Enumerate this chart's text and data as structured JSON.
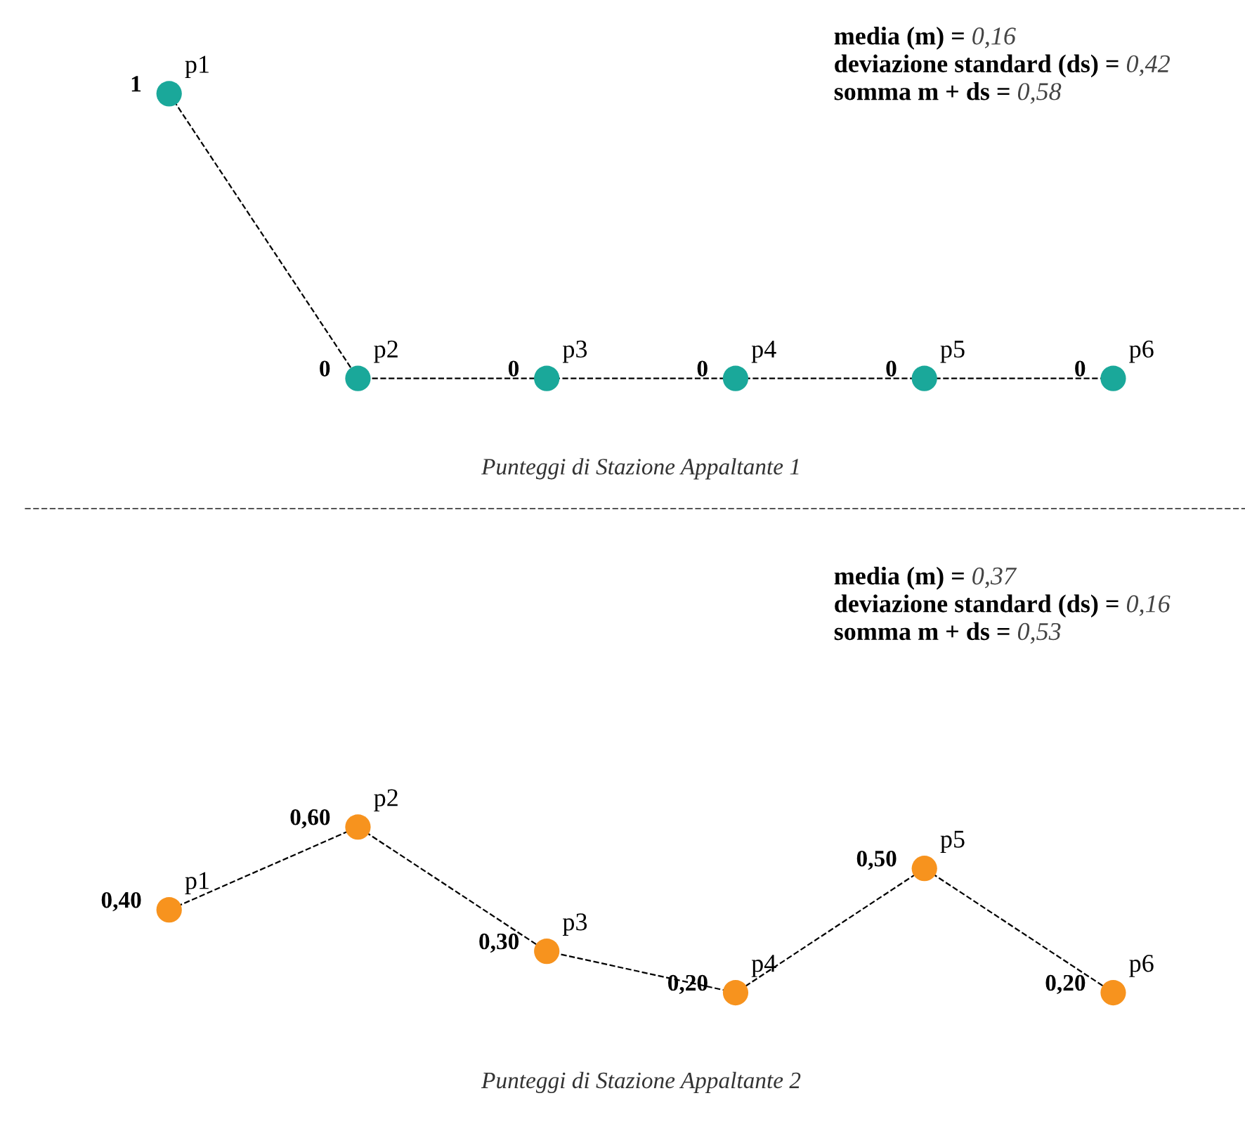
{
  "chart_data": [
    {
      "type": "line",
      "categories": [
        "p1",
        "p2",
        "p3",
        "p4",
        "p5",
        "p6"
      ],
      "series": [
        {
          "color": "#1aa89a",
          "values": [
            1,
            0,
            0,
            0,
            0,
            0
          ],
          "value_labels": [
            "1",
            "0",
            "0",
            "0",
            "0",
            "0"
          ]
        }
      ],
      "marker": "circle",
      "line_style": "dashed",
      "tick_labels": false,
      "annotations": [
        "media (m) = 0,16",
        "deviazione standard (ds) = 0,42",
        "somma m + ds = 0,58",
        "Punteggi di Stazione Appaltante 1"
      ]
    },
    {
      "type": "line",
      "categories": [
        "p1",
        "p2",
        "p3",
        "p4",
        "p5",
        "p6"
      ],
      "series": [
        {
          "color": "#f7931e",
          "values": [
            0.4,
            0.6,
            0.3,
            0.2,
            0.5,
            0.2
          ],
          "value_labels": [
            "0,40",
            "0,60",
            "0,30",
            "0,20",
            "0,50",
            "0,20"
          ]
        }
      ],
      "marker": "circle",
      "line_style": "dashed",
      "tick_labels": false,
      "annotations": [
        "media (m) = 0,37",
        "deviazione standard (ds) = 0,16",
        "somma m + ds = 0,53",
        "Punteggi di Stazione Appaltante 2"
      ]
    }
  ]
}
